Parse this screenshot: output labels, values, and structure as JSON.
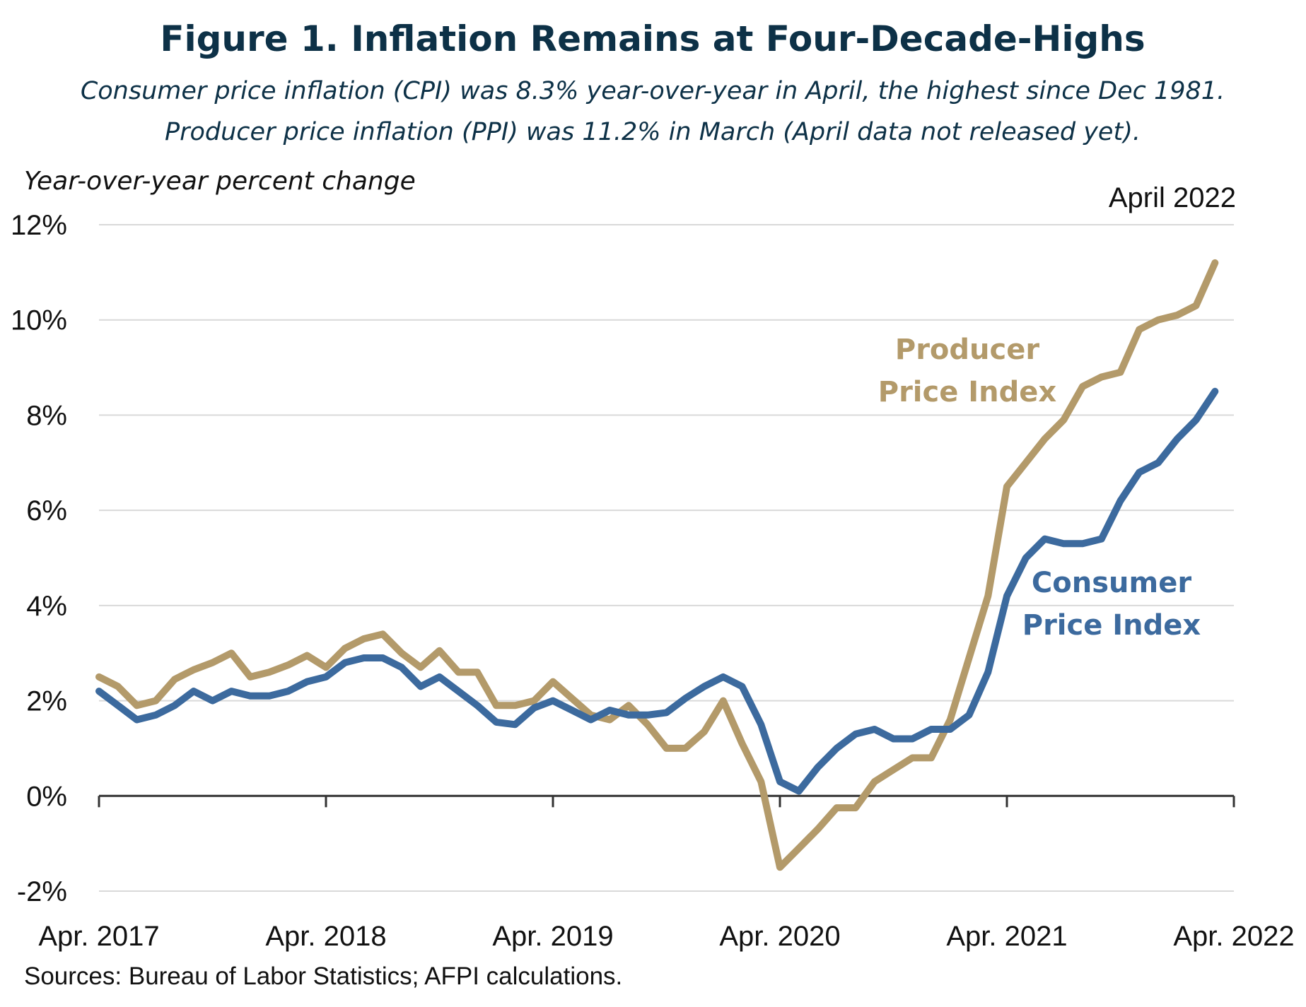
{
  "colors": {
    "ppi": "#b39a6a",
    "cpi": "#3c6a9e",
    "title": "#0d3147",
    "grid": "#d9d9d9",
    "axis": "#333333"
  },
  "chart_data": {
    "type": "line",
    "title": "Figure 1. Inflation Remains at Four-Decade-Highs",
    "subtitle_lines": [
      "Consumer price inflation (CPI) was 8.3% year-over-year in April, the highest since Dec 1981.",
      "Producer price inflation (PPI) was 11.2% in March (April data not released yet)."
    ],
    "ylabel": "Year-over-year percent change",
    "annotation": "April 2022",
    "source": "Sources: Bureau of Labor Statistics; AFPI calculations.",
    "ylim": [
      -2,
      12
    ],
    "yticks": [
      -2,
      0,
      2,
      4,
      6,
      8,
      10,
      12
    ],
    "ytick_labels": [
      "-2%",
      "0%",
      "2%",
      "4%",
      "6%",
      "8%",
      "10%",
      "12%"
    ],
    "xtick_labels": [
      "Apr. 2017",
      "Apr. 2018",
      "Apr. 2019",
      "Apr. 2020",
      "Apr. 2021",
      "Apr. 2022"
    ],
    "x_start": "Apr. 2017",
    "x_frequency": "monthly",
    "grid": true,
    "series": [
      {
        "name": "Producer Price Index",
        "label_lines": [
          "Producer",
          "Price Index"
        ],
        "color": "#b39a6a",
        "values": [
          2.5,
          2.3,
          1.9,
          2.0,
          2.45,
          2.65,
          2.8,
          3.0,
          2.5,
          2.6,
          2.75,
          2.95,
          2.7,
          3.1,
          3.3,
          3.4,
          3.0,
          2.7,
          3.05,
          2.6,
          2.6,
          1.9,
          1.9,
          2.0,
          2.4,
          2.05,
          1.7,
          1.6,
          1.9,
          1.5,
          1.0,
          1.0,
          1.35,
          2.0,
          1.1,
          0.3,
          -1.5,
          -1.1,
          -0.7,
          -0.25,
          -0.25,
          0.3,
          0.55,
          0.8,
          0.8,
          1.6,
          2.9,
          4.2,
          6.5,
          7.0,
          7.5,
          7.9,
          8.6,
          8.8,
          8.9,
          9.8,
          10.0,
          10.1,
          10.3,
          11.2
        ]
      },
      {
        "name": "Consumer Price Index",
        "label_lines": [
          "Consumer",
          "Price Index"
        ],
        "color": "#3c6a9e",
        "values": [
          2.2,
          1.9,
          1.6,
          1.7,
          1.9,
          2.2,
          2.0,
          2.2,
          2.1,
          2.1,
          2.2,
          2.4,
          2.5,
          2.8,
          2.9,
          2.9,
          2.7,
          2.3,
          2.5,
          2.2,
          1.9,
          1.55,
          1.5,
          1.85,
          2.0,
          1.8,
          1.6,
          1.8,
          1.7,
          1.7,
          1.75,
          2.05,
          2.3,
          2.5,
          2.3,
          1.5,
          0.3,
          0.1,
          0.6,
          1.0,
          1.3,
          1.4,
          1.2,
          1.2,
          1.4,
          1.4,
          1.7,
          2.6,
          4.2,
          5.0,
          5.4,
          5.3,
          5.3,
          5.4,
          6.2,
          6.8,
          7.0,
          7.5,
          7.9,
          8.5
        ]
      }
    ]
  }
}
